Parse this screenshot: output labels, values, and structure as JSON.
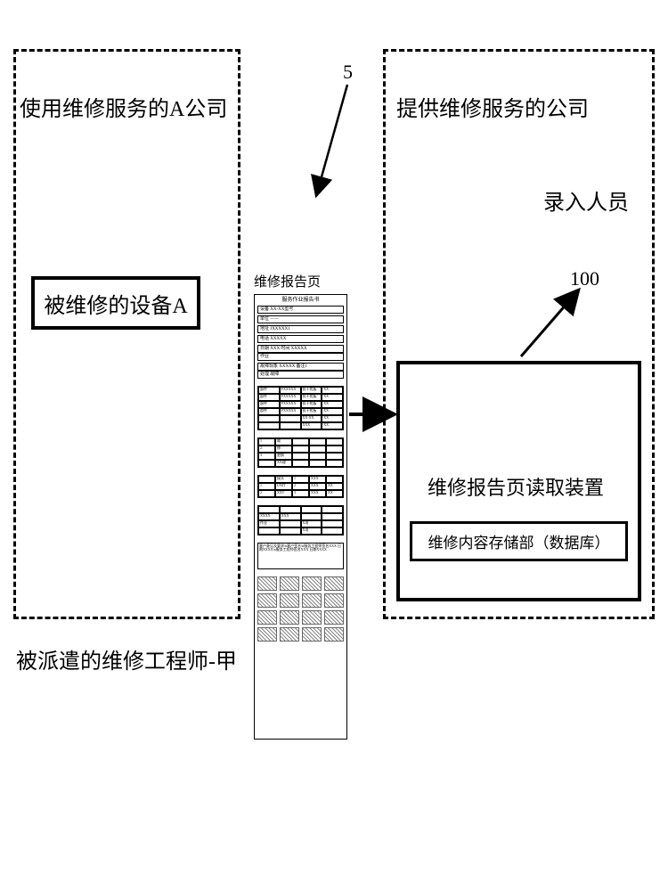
{
  "left_box": {
    "title": "使用维修服务的A公司",
    "device_label": "被维修的设备A"
  },
  "right_box": {
    "title": "提供维修服务的公司",
    "subtitle": "录入人员",
    "reader_label": "维修报告页读取装置",
    "db_label": "维修内容存储部（数据库）"
  },
  "bottom_label": "被派遣的维修工程师-甲",
  "callout_5": "5",
  "callout_100": "100",
  "report": {
    "label": "维修报告页",
    "title": "服务作业报告书",
    "rows": [
      "设备 XX-XX型号",
      "单位 ——",
      "地址 JXXXXX1",
      "电话 XXXXX",
      "日期 XXX    时间 XXXXX",
      "作业",
      "故障现象 XXXXX  备注1",
      "处理 故障"
    ],
    "table1": {
      "rows": [
        [
          "部件",
          "FXXXXX",
          "抗干扰板",
          "XX"
        ],
        [
          "部件",
          "FXXXXX",
          "抗干扰板",
          "XX"
        ],
        [
          "部件",
          "FXXXXX",
          "抗干扰板",
          "XX"
        ],
        [
          "部件",
          "FXXXXX",
          "抗干扰板",
          "XX"
        ],
        [
          "",
          "",
          "XX-XX",
          "XX"
        ],
        [
          "",
          "",
          "XXX",
          "XX"
        ]
      ]
    },
    "table2": {
      "rows": [
        [
          "1",
          "故",
          "",
          "",
          ""
        ],
        [
          "2",
          "修",
          "",
          "",
          ""
        ],
        [
          "3",
          "更换",
          "",
          "",
          ""
        ],
        [
          "",
          "XX理",
          "",
          "",
          ""
        ]
      ]
    },
    "table3": {
      "rows": [
        [
          "",
          "接头",
          "1",
          "XXX",
          ""
        ],
        [
          "1",
          "UNIT",
          "2",
          "XXX",
          "XX"
        ],
        [
          "2",
          "XXT",
          "3",
          "XXX",
          "XX"
        ]
      ]
    },
    "table4": {
      "rows": [
        [
          "",
          "",
          "",
          ""
        ],
        [
          "XXXX",
          "XXX",
          "",
          ""
        ],
        [
          "作业",
          "",
          "X项",
          ""
        ],
        [
          "",
          "",
          "X项",
          ""
        ]
      ]
    },
    "notes": "客户意见及要求\\n客户签名\\n服务工程师签名XXX 日期XXXX\\n服务工程师签名XXX 日期XXXX"
  },
  "style": {
    "bg": "#ffffff",
    "stroke": "#000000",
    "dash": "8,6",
    "arrow_stroke_width": 3
  }
}
